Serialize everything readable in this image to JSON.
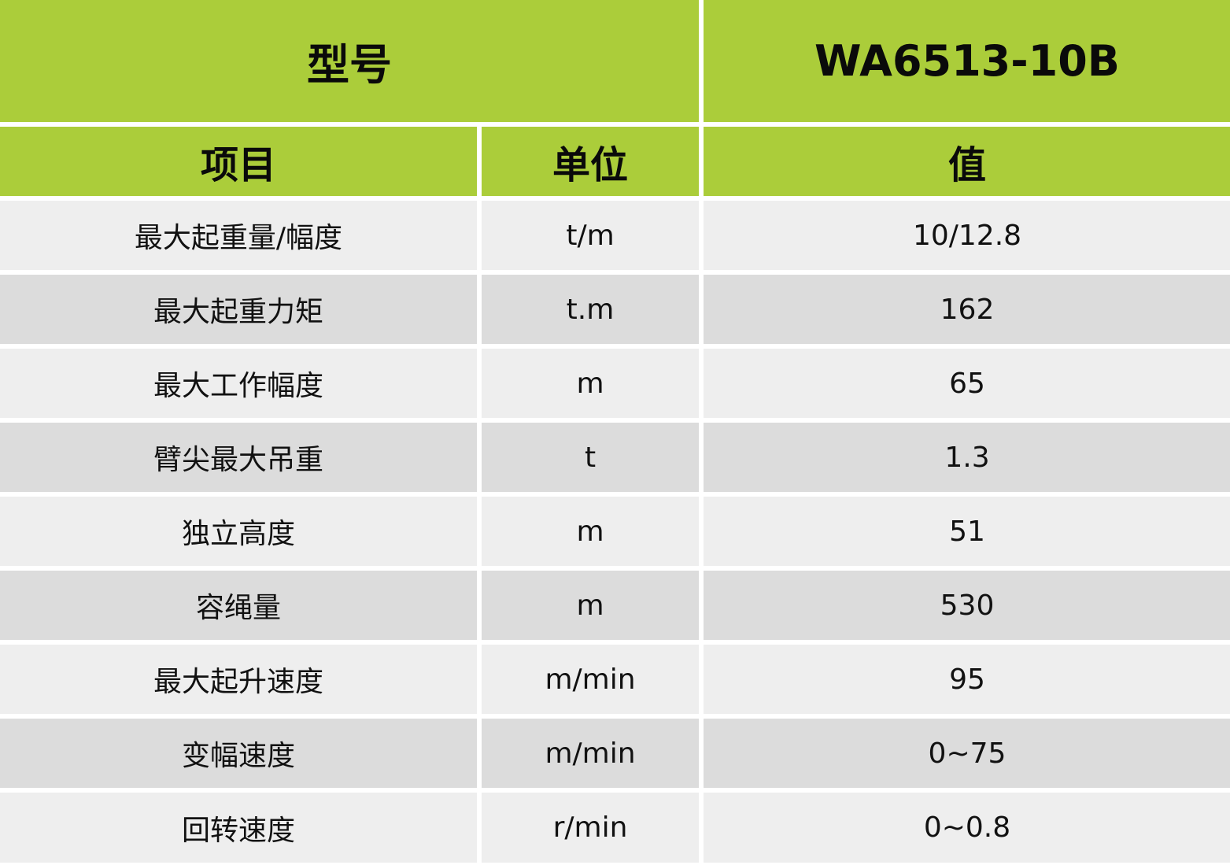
{
  "header": {
    "model_label": "型号",
    "model_value": "WA6513-10B",
    "col_item": "项目",
    "col_unit": "单位",
    "col_value": "值"
  },
  "colors": {
    "header_green": "#abcd3a",
    "row_light": "#eeeeee",
    "row_dark": "#dcdcdc"
  },
  "rows": [
    {
      "item": "最大起重量/幅度",
      "unit": "t/m",
      "value": "10/12.8"
    },
    {
      "item": "最大起重力矩",
      "unit": "t.m",
      "value": "162"
    },
    {
      "item": "最大工作幅度",
      "unit": "m",
      "value": "65"
    },
    {
      "item": "臂尖最大吊重",
      "unit": "t",
      "value": "1.3"
    },
    {
      "item": "独立高度",
      "unit": "m",
      "value": "51"
    },
    {
      "item": "容绳量",
      "unit": "m",
      "value": "530"
    },
    {
      "item": "最大起升速度",
      "unit": "m/min",
      "value": "95"
    },
    {
      "item": "变幅速度",
      "unit": "m/min",
      "value": "0~75"
    },
    {
      "item": "回转速度",
      "unit": "r/min",
      "value": "0~0.8"
    }
  ]
}
